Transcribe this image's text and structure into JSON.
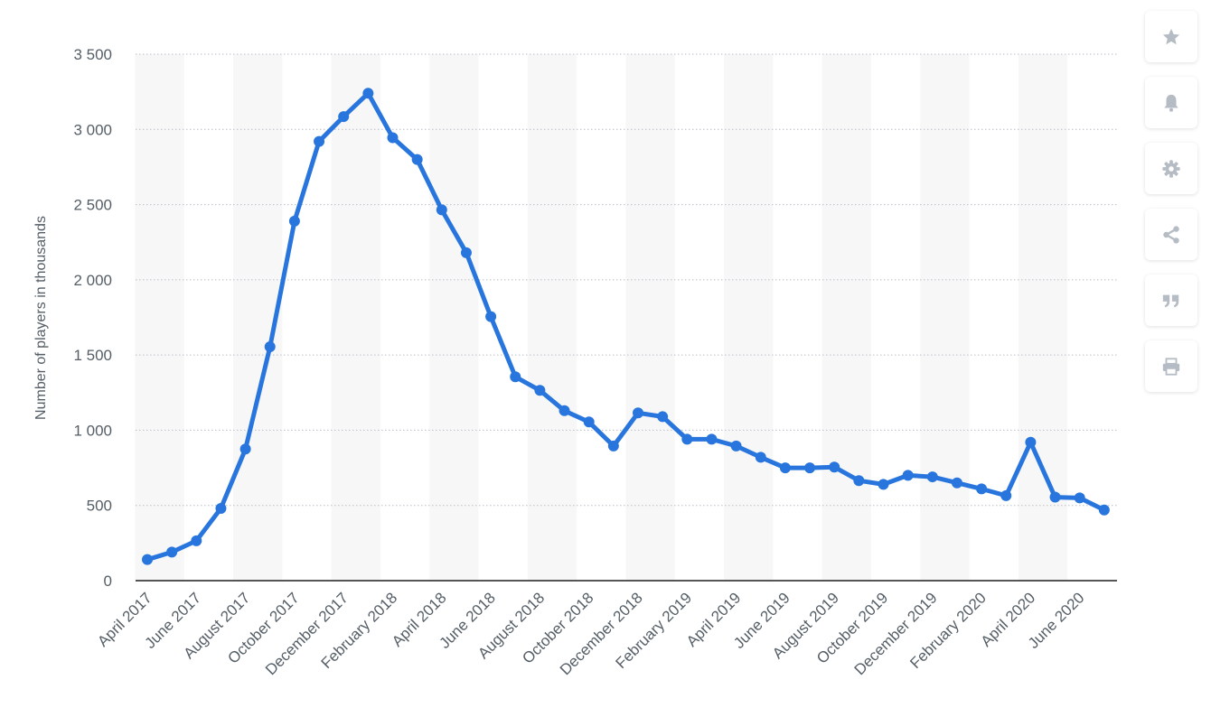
{
  "chart_data": {
    "type": "line",
    "title": "",
    "xlabel": "",
    "ylabel": "Number of players in thousands",
    "ylim": [
      0,
      3500
    ],
    "yticks": [
      0,
      500,
      1000,
      1500,
      2000,
      2500,
      3000,
      3500
    ],
    "ytick_labels": [
      "0",
      "500",
      "1 000",
      "1 500",
      "2 000",
      "2 500",
      "3 000",
      "3 500"
    ],
    "x": [
      "April 2017",
      "May 2017",
      "June 2017",
      "July 2017",
      "August 2017",
      "September 2017",
      "October 2017",
      "November 2017",
      "December 2017",
      "January 2018",
      "February 2018",
      "March 2018",
      "April 2018",
      "May 2018",
      "June 2018",
      "July 2018",
      "August 2018",
      "September 2018",
      "October 2018",
      "November 2018",
      "December 2018",
      "January 2019",
      "February 2019",
      "March 2019",
      "April 2019",
      "May 2019",
      "June 2019",
      "July 2019",
      "August 2019",
      "September 2019",
      "October 2019",
      "November 2019",
      "December 2019",
      "January 2020",
      "February 2020",
      "March 2020",
      "April 2020",
      "May 2020",
      "June 2020",
      "July 2020"
    ],
    "xtick_labels": [
      "April 2017",
      "June 2017",
      "August 2017",
      "October 2017",
      "December 2017",
      "February 2018",
      "April 2018",
      "June 2018",
      "August 2018",
      "October 2018",
      "December 2018",
      "February 2019",
      "April 2019",
      "June 2019",
      "August 2019",
      "October 2019",
      "December 2019",
      "February 2020",
      "April 2020",
      "June 2020"
    ],
    "series": [
      {
        "values": [
          140,
          190,
          265,
          480,
          875,
          1555,
          2390,
          2920,
          3085,
          3240,
          2945,
          2800,
          2465,
          2180,
          1755,
          1355,
          1265,
          1130,
          1055,
          895,
          1115,
          1090,
          940,
          940,
          895,
          820,
          750,
          750,
          755,
          665,
          640,
          700,
          690,
          650,
          610,
          565,
          920,
          555,
          550,
          470
        ],
        "color": "#2876dd"
      }
    ],
    "grid": true,
    "legend": "none"
  },
  "toolbar": {
    "icons": [
      "star-icon",
      "bell-icon",
      "gear-icon",
      "share-icon",
      "quote-icon",
      "print-icon"
    ],
    "icon_color": "#b5bcc4"
  }
}
